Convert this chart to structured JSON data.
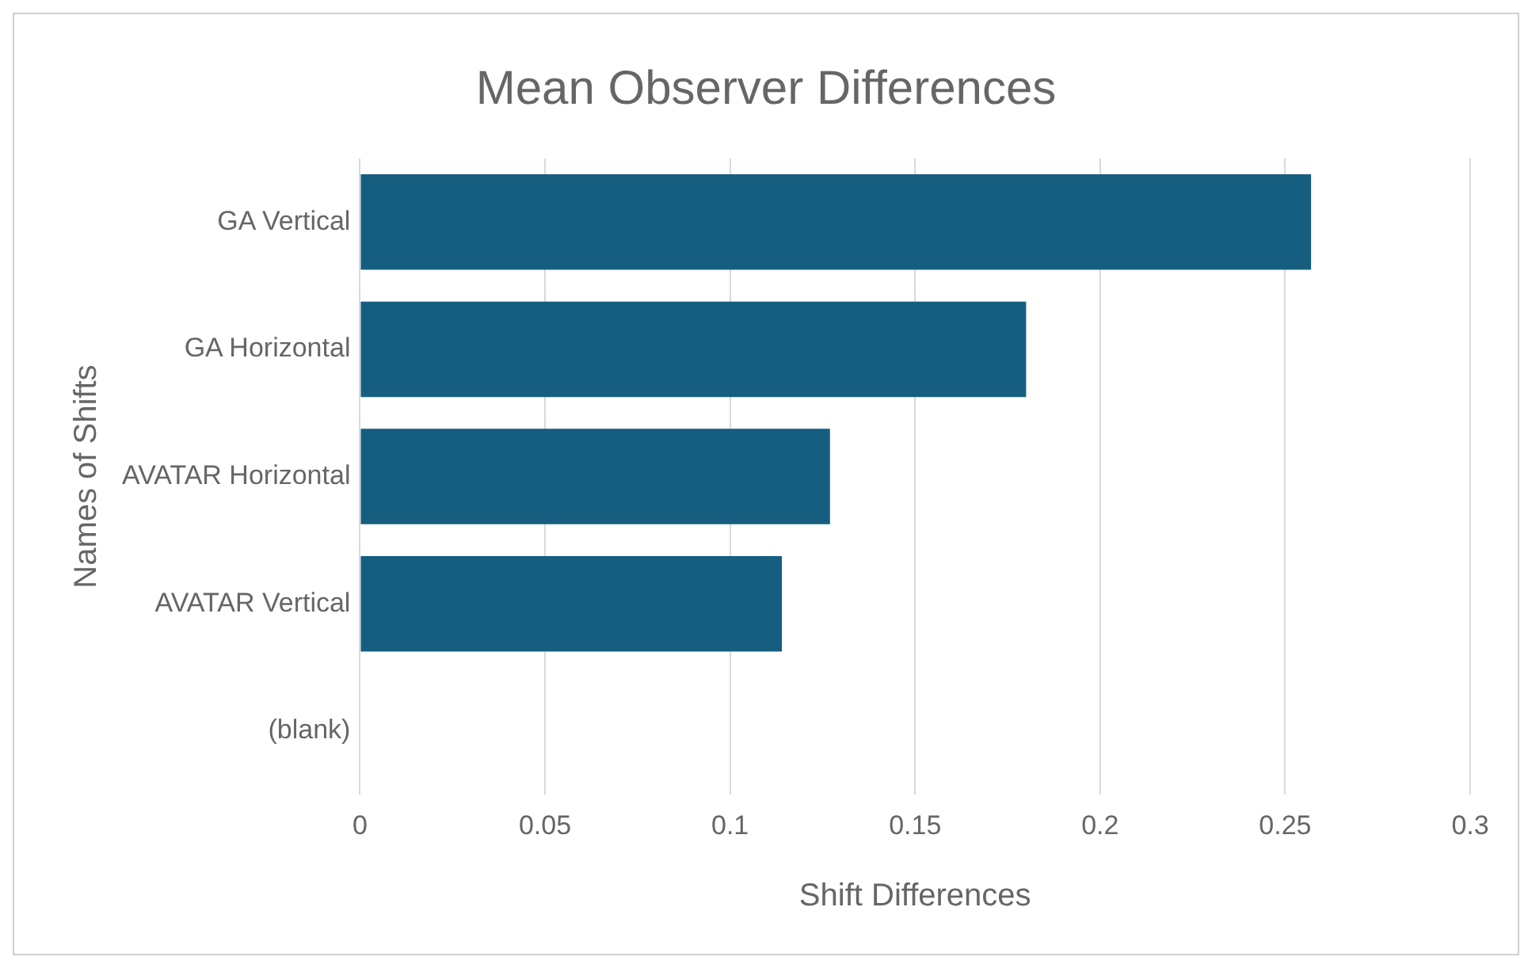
{
  "chart_data": {
    "type": "bar",
    "orientation": "horizontal",
    "title": "Mean Observer Differences",
    "xlabel": "Shift Differences",
    "ylabel": "Names of Shifts",
    "categories": [
      "GA Vertical",
      "GA Horizontal",
      "AVATAR Horizontal",
      "AVATAR Vertical",
      "(blank)"
    ],
    "values": [
      0.257,
      0.18,
      0.127,
      0.114,
      null
    ],
    "color": "#165e80",
    "xlim": [
      0,
      0.3
    ],
    "xticks": [
      0,
      0.05,
      0.1,
      0.15,
      0.2,
      0.25,
      0.3
    ],
    "grid": "x",
    "legend": false
  }
}
